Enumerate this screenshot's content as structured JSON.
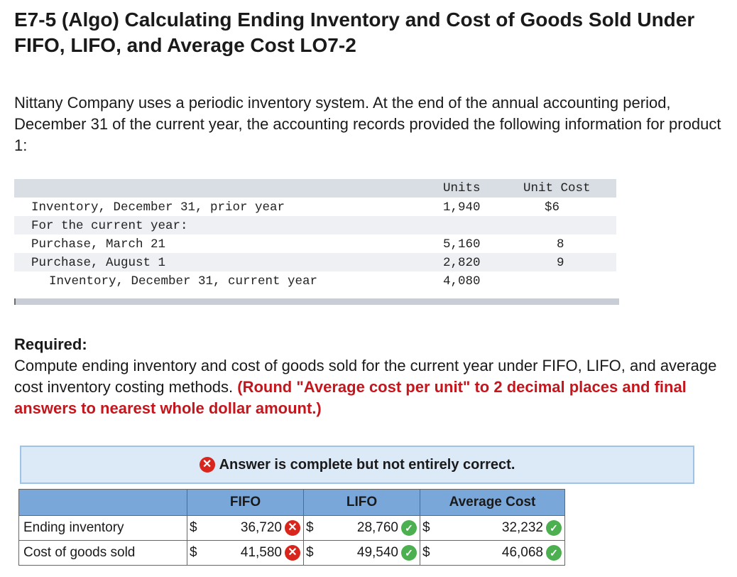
{
  "title": "E7-5 (Algo) Calculating Ending Inventory and Cost of Goods Sold Under FIFO, LIFO, and Average Cost LO7-2",
  "intro": "Nittany Company uses a periodic inventory system. At the end of the annual accounting period, December 31 of the current year, the accounting records provided the following information for product 1:",
  "given_table": {
    "headers": {
      "units": "Units",
      "unit_cost": "Unit Cost"
    },
    "rows": [
      {
        "label": "Inventory, December 31, prior year",
        "units": "1,940",
        "unit_cost": "$6"
      },
      {
        "label": "For the current year:",
        "units": "",
        "unit_cost": ""
      },
      {
        "label": "Purchase, March 21",
        "units": "5,160",
        "unit_cost": "8"
      },
      {
        "label": "Purchase, August 1",
        "units": "2,820",
        "unit_cost": "9"
      },
      {
        "label": "Inventory, December 31, current year",
        "units": "4,080",
        "unit_cost": ""
      }
    ]
  },
  "required": {
    "label": "Required:",
    "text": "Compute ending inventory and cost of goods sold for the current year under FIFO, LIFO, and average cost inventory costing methods.",
    "instruction": "(Round \"Average cost per unit\" to 2 decimal places and final answers to nearest whole dollar amount.)"
  },
  "banner": {
    "text": "Answer is complete but not entirely correct.",
    "icon": "x-circle-icon"
  },
  "answer_table": {
    "columns": [
      "FIFO",
      "LIFO",
      "Average Cost"
    ],
    "currency": "$",
    "rows": [
      {
        "label": "Ending inventory",
        "fifo": "36,720",
        "fifo_status": "incorrect",
        "lifo": "28,760",
        "lifo_status": "correct",
        "avg": "32,232",
        "avg_status": "correct"
      },
      {
        "label": "Cost of goods sold",
        "fifo": "41,580",
        "fifo_status": "incorrect",
        "lifo": "49,540",
        "lifo_status": "correct",
        "avg": "46,068",
        "avg_status": "correct"
      }
    ]
  },
  "colors": {
    "header_blue": "#7aa7d9",
    "banner_bg": "#dce9f7",
    "error_red": "#d9261c",
    "correct_green": "#4caf50",
    "instruction_red": "#c4161c"
  }
}
